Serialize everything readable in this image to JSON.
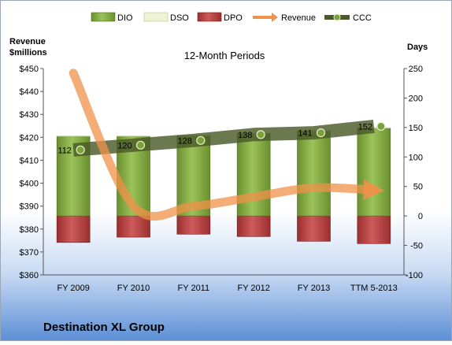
{
  "chart_data": {
    "type": "bar",
    "title": "12-Month Periods",
    "company": "Destination XL Group",
    "left_axis_label": "Revenue\n$millions",
    "right_axis_label": "Days",
    "categories": [
      "FY 2009",
      "FY 2010",
      "FY 2011",
      "FY 2012",
      "FY 2013",
      "TTM 5-2013"
    ],
    "left_axis": {
      "min": 360,
      "max": 450,
      "step": 10,
      "prefix": "$"
    },
    "right_axis": {
      "min": -100,
      "max": 250,
      "step": 50
    },
    "series": [
      {
        "name": "DIO",
        "kind": "bar",
        "axis": "right",
        "values": [
          135,
          135,
          136,
          140,
          144,
          149
        ]
      },
      {
        "name": "DSO",
        "kind": "bar",
        "axis": "right",
        "values": [
          1,
          1,
          1,
          1,
          1,
          1
        ]
      },
      {
        "name": "DPO",
        "kind": "bar",
        "axis": "right",
        "values": [
          -45,
          -36,
          -31,
          -35,
          -43,
          -47
        ]
      },
      {
        "name": "Revenue",
        "kind": "arrow-line",
        "axis": "left",
        "values": [
          448,
          390,
          390,
          394,
          398,
          397
        ]
      },
      {
        "name": "CCC",
        "kind": "line",
        "axis": "right",
        "values": [
          112,
          120,
          128,
          138,
          141,
          152
        ]
      }
    ],
    "ccc_labels": [
      "112",
      "120",
      "128",
      "138",
      "141",
      "152"
    ],
    "legend_position": "top",
    "grid": false,
    "colors": {
      "DIO": "#7aa23a",
      "DSO": "#eef3d6",
      "DPO": "#b13c3c",
      "Revenue": "#f0924a",
      "CCC": "#5a6a3a",
      "background_top": "#ffffff",
      "background_bottom": "#5b8fd6"
    }
  }
}
